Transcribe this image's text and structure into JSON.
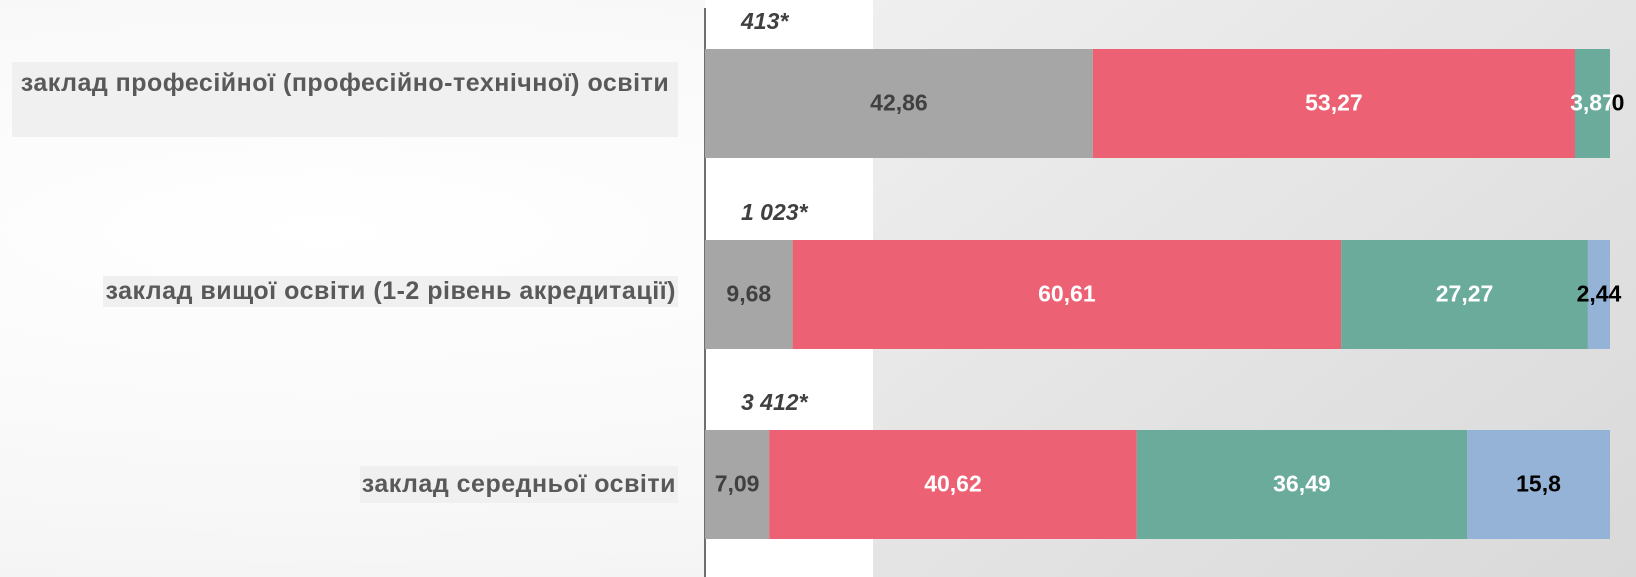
{
  "chart_data": {
    "type": "stacked-bar-horizontal",
    "categories": [
      "заклад професійної (професійно-технічної) освіти",
      "заклад вищої освіти (1-2 рівень акредитації)",
      "заклад середньої освіти"
    ],
    "annotations": [
      "413*",
      "1 023*",
      "3 412*"
    ],
    "series": [
      {
        "color": "#a6a6a6",
        "values": [
          42.86,
          9.68,
          7.09
        ],
        "value_labels": [
          "42,86",
          "9,68",
          "7,09"
        ]
      },
      {
        "color": "#ec6174",
        "values": [
          53.27,
          60.61,
          40.62
        ],
        "value_labels": [
          "53,27",
          "60,61",
          "40,62"
        ]
      },
      {
        "color": "#6aab9c",
        "values": [
          3.87,
          27.27,
          36.49
        ],
        "value_labels": [
          "3,87",
          "27,27",
          "36,49"
        ]
      },
      {
        "color": "#95b3d7",
        "values": [
          0,
          2.44,
          15.8
        ],
        "value_labels": [
          "0",
          "2,44",
          "15,8"
        ]
      }
    ],
    "xlim": [
      0,
      100
    ]
  }
}
